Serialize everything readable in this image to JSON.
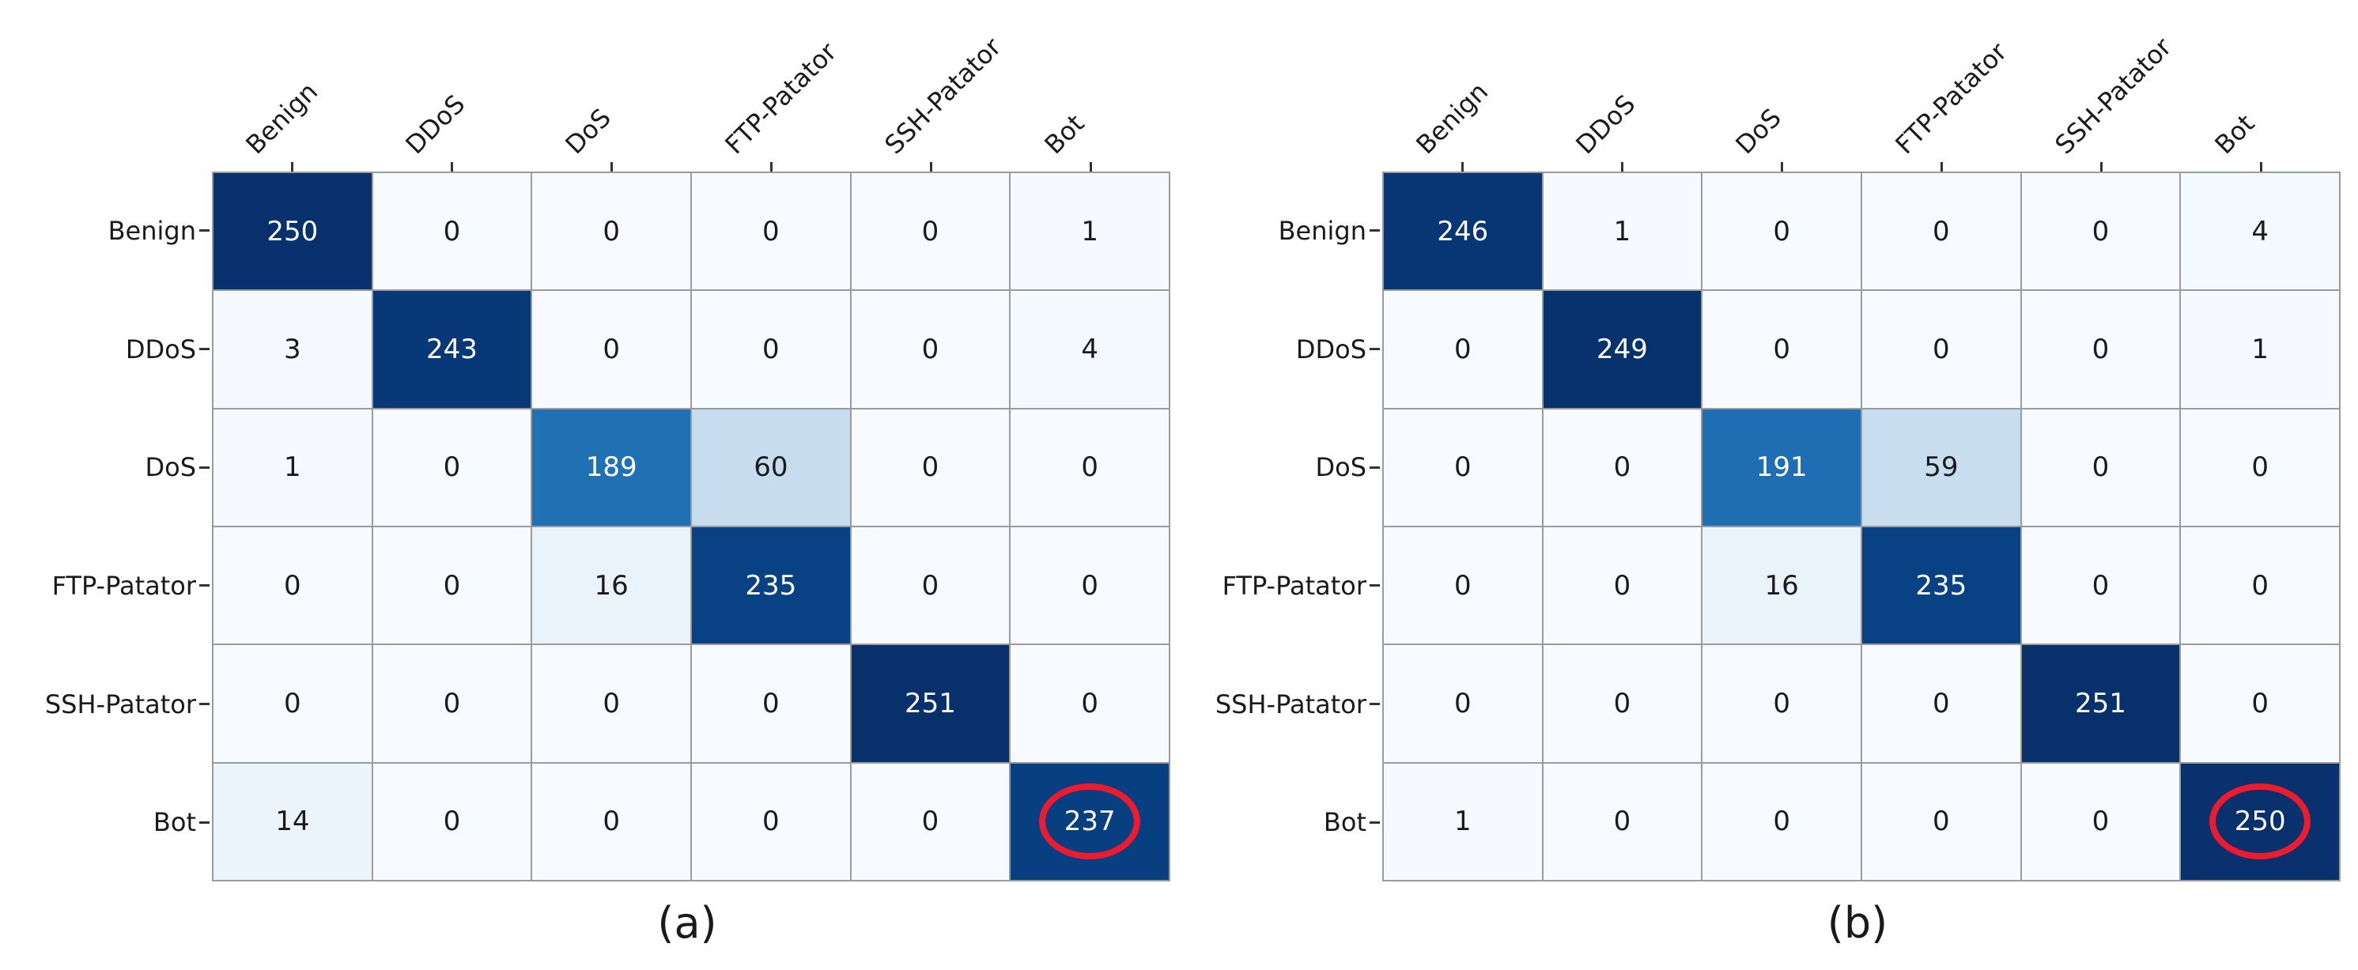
{
  "figure": {
    "background": "#ffffff",
    "description": "Two side-by-side confusion matrices rendered as Blues heatmaps with annotated counts; the Bot/Bot diagonal cell of each matrix is circled in red."
  },
  "chart_data": [
    {
      "type": "heatmap",
      "caption": "(a)",
      "x_labels": [
        "Benign",
        "DDoS",
        "DoS",
        "FTP-Patator",
        "SSH-Patator",
        "Bot"
      ],
      "y_labels": [
        "Benign",
        "DDoS",
        "DoS",
        "FTP-Patator",
        "SSH-Patator",
        "Bot"
      ],
      "values": [
        [
          250,
          0,
          0,
          0,
          0,
          1
        ],
        [
          3,
          243,
          0,
          0,
          0,
          4
        ],
        [
          1,
          0,
          189,
          60,
          0,
          0
        ],
        [
          0,
          0,
          16,
          235,
          0,
          0
        ],
        [
          0,
          0,
          0,
          0,
          251,
          0
        ],
        [
          14,
          0,
          0,
          0,
          0,
          237
        ]
      ],
      "vmin": 0,
      "vmax": 251,
      "colormap": "Blues",
      "grid": true,
      "legend": "none",
      "highlight": {
        "row": 5,
        "col": 5,
        "value": 237,
        "marker": "red-ellipse"
      }
    },
    {
      "type": "heatmap",
      "caption": "(b)",
      "x_labels": [
        "Benign",
        "DDoS",
        "DoS",
        "FTP-Patator",
        "SSH-Patator",
        "Bot"
      ],
      "y_labels": [
        "Benign",
        "DDoS",
        "DoS",
        "FTP-Patator",
        "SSH-Patator",
        "Bot"
      ],
      "values": [
        [
          246,
          1,
          0,
          0,
          0,
          4
        ],
        [
          0,
          249,
          0,
          0,
          0,
          1
        ],
        [
          0,
          0,
          191,
          59,
          0,
          0
        ],
        [
          0,
          0,
          16,
          235,
          0,
          0
        ],
        [
          0,
          0,
          0,
          0,
          251,
          0
        ],
        [
          1,
          0,
          0,
          0,
          0,
          250
        ]
      ],
      "vmin": 0,
      "vmax": 251,
      "colormap": "Blues",
      "grid": true,
      "legend": "none",
      "highlight": {
        "row": 5,
        "col": 5,
        "value": 250,
        "marker": "red-ellipse"
      }
    }
  ],
  "style": {
    "colormap_stops": [
      [
        0.0,
        "#f7fbff"
      ],
      [
        0.125,
        "#deebf7"
      ],
      [
        0.25,
        "#c6dbef"
      ],
      [
        0.375,
        "#9ecae1"
      ],
      [
        0.5,
        "#6baed6"
      ],
      [
        0.625,
        "#4292c6"
      ],
      [
        0.75,
        "#2171b5"
      ],
      [
        0.875,
        "#08519c"
      ],
      [
        1.0,
        "#08306b"
      ]
    ],
    "grid_line_color": "#9b9b9b",
    "tick_color": "#333333",
    "dark_text_color": "#1a1a1a",
    "light_text_color": "#ffffff",
    "highlight_color": "#ec1b2e"
  }
}
